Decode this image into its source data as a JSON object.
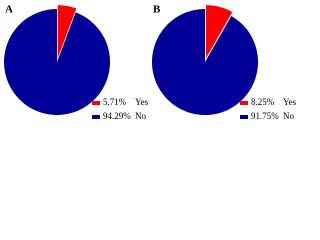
{
  "chart_data": [
    {
      "type": "pie",
      "title": "A",
      "categories": [
        "Yes",
        "No"
      ],
      "values": [
        5.71,
        94.29
      ],
      "value_labels": [
        "5.71%",
        "94.29%"
      ],
      "colors": [
        "#ff0000",
        "#000099"
      ],
      "explode": [
        true,
        false
      ],
      "legend": "bottom-right"
    },
    {
      "type": "pie",
      "title": "B",
      "categories": [
        "Yes",
        "No"
      ],
      "values": [
        8.25,
        91.75
      ],
      "value_labels": [
        "8.25%",
        "91.75%"
      ],
      "colors": [
        "#ff0000",
        "#000099"
      ],
      "explode": [
        true,
        false
      ],
      "legend": "bottom-right"
    }
  ]
}
